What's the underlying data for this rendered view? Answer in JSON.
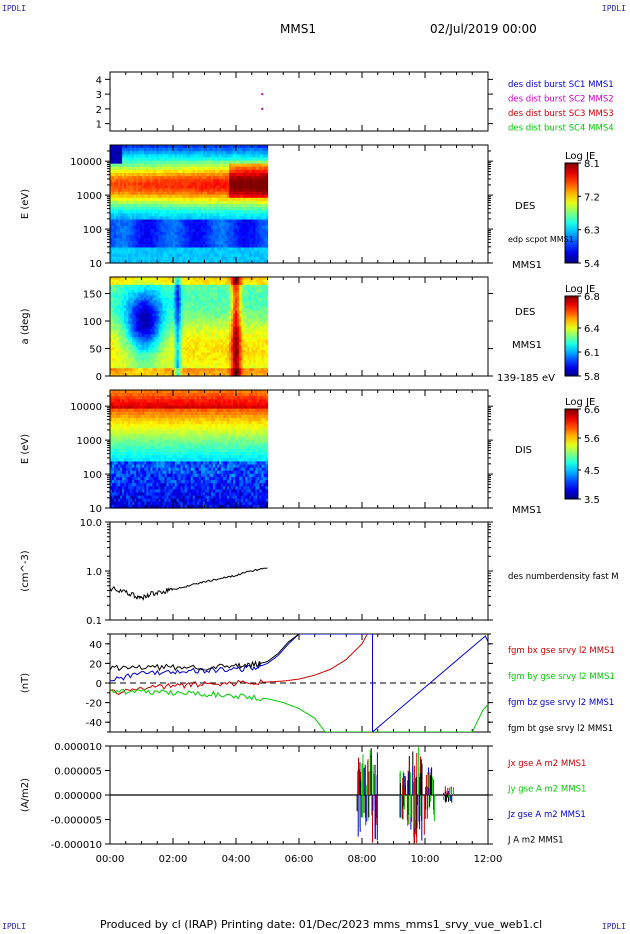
{
  "header": {
    "corner_tl": "IPDLI",
    "corner_tr": "IPDLI",
    "corner_bl": "IPDLI",
    "corner_br": "IPDLI",
    "title": "MMS1",
    "date": "02/Jul/2019 00:00"
  },
  "footer": {
    "text": "Produced by cl (IRAP)   Printing date: 01/Dec/2023   mms_mms1_srvy_vue_web1.cl"
  },
  "colors": {
    "blue": "#0000cc",
    "magenta": "#cc00cc",
    "red": "#cc0000",
    "green": "#00cc00",
    "black": "#000000"
  },
  "chart_data": [
    {
      "type": "scatter",
      "ylim": [
        0.5,
        4.5
      ],
      "yticks": [
        "1",
        "2",
        "3",
        "4"
      ],
      "legend": [
        {
          "label": "des dist burst SC1 MMS1",
          "color": "#0000cc"
        },
        {
          "label": "des dist burst SC2 MMS2",
          "color": "#cc00cc"
        },
        {
          "label": "des dist burst SC3 MMS3",
          "color": "#cc0000"
        },
        {
          "label": "des dist burst SC4 MMS4",
          "color": "#00cc00"
        }
      ],
      "points": [
        {
          "x": "04:50",
          "y": 3
        },
        {
          "x": "04:50",
          "y": 2
        }
      ]
    },
    {
      "type": "heatmap",
      "ylabel": "E (eV)",
      "yscale": "log",
      "ylim": [
        10,
        30000
      ],
      "yticks": [
        "10",
        "100",
        "1000",
        "10000"
      ],
      "xrange": [
        "00:00",
        "05:00"
      ],
      "right_labels": [
        "DES",
        "edp scpot MMS1",
        "MMS1"
      ],
      "colorbar": {
        "title": "Log JE",
        "ticks": [
          "8.1",
          "7.2",
          "6.3",
          "5.4"
        ],
        "range": [
          5.4,
          8.1
        ]
      }
    },
    {
      "type": "heatmap",
      "ylabel": "a (deg)",
      "ylim": [
        0,
        180
      ],
      "yticks": [
        "0",
        "50",
        "100",
        "150"
      ],
      "xrange": [
        "00:00",
        "05:00"
      ],
      "right_labels": [
        "DES",
        "MMS1",
        "139-185 eV"
      ],
      "colorbar": {
        "title": "Log JE",
        "ticks": [
          "6.8",
          "6.4",
          "6.1",
          "5.8"
        ],
        "range": [
          5.8,
          6.8
        ]
      }
    },
    {
      "type": "heatmap",
      "ylabel": "E (eV)",
      "yscale": "log",
      "ylim": [
        10,
        30000
      ],
      "yticks": [
        "10",
        "100",
        "1000",
        "10000"
      ],
      "xrange": [
        "00:00",
        "05:00"
      ],
      "right_labels": [
        "DIS",
        "MMS1"
      ],
      "colorbar": {
        "title": "Log JE",
        "ticks": [
          "6.6",
          "5.6",
          "4.5",
          "3.5"
        ],
        "range": [
          3.5,
          6.6
        ]
      }
    },
    {
      "type": "line",
      "ylabel": "(cm^-3)",
      "yscale": "log",
      "ylim": [
        0.1,
        10
      ],
      "yticks": [
        "0.1",
        "1.0",
        "10.0"
      ],
      "legend": [
        {
          "label": "des numberdensity fast M",
          "color": "#000000"
        }
      ],
      "series": [
        {
          "name": "des numberdensity fast M",
          "color": "#000000",
          "x": [
            "00:00",
            "00:30",
            "00:50",
            "01:00",
            "01:20",
            "01:40",
            "02:00",
            "02:30",
            "03:00",
            "03:30",
            "04:00",
            "04:30",
            "05:00"
          ],
          "values": [
            0.45,
            0.36,
            0.31,
            0.28,
            0.35,
            0.38,
            0.42,
            0.5,
            0.6,
            0.7,
            0.82,
            1.0,
            1.15
          ]
        }
      ]
    },
    {
      "type": "line",
      "ylabel": "(nT)",
      "ylim": [
        -50,
        50
      ],
      "yticks": [
        "-40",
        "-20",
        "0",
        "20",
        "40"
      ],
      "legend": [
        {
          "label": "fgm bx gse srvy l2 MMS1",
          "color": "#cc0000"
        },
        {
          "label": "fgm by gse srvy l2 MMS1",
          "color": "#00cc00"
        },
        {
          "label": "fgm bz gse srvy l2 MMS1",
          "color": "#0000cc"
        },
        {
          "label": "fgm bt gse srvy l2 MMS1",
          "color": "#000000"
        }
      ],
      "series": [
        {
          "name": "fgm bx gse srvy l2 MMS1",
          "color": "#cc0000",
          "x": [
            "00:00",
            "01:00",
            "02:00",
            "03:00",
            "04:00",
            "05:00",
            "05:30",
            "06:00",
            "06:30",
            "07:00",
            "07:30",
            "08:00",
            "08:10"
          ],
          "values": [
            -10,
            -6,
            -3,
            -1,
            0,
            1,
            2,
            4,
            8,
            14,
            24,
            40,
            50
          ]
        },
        {
          "name": "fgm by gse srvy l2 MMS1",
          "color": "#00cc00",
          "x": [
            "00:00",
            "01:00",
            "02:00",
            "03:00",
            "04:00",
            "05:00",
            "05:30",
            "06:00",
            "06:30",
            "06:50",
            "11:30",
            "11:50",
            "12:00"
          ],
          "values": [
            -8,
            -9,
            -10,
            -11,
            -13,
            -16,
            -20,
            -26,
            -36,
            -50,
            -50,
            -28,
            -22
          ]
        },
        {
          "name": "fgm bz gse srvy l2 MMS1",
          "color": "#0000cc",
          "x": [
            "00:00",
            "01:00",
            "02:00",
            "03:00",
            "04:00",
            "04:40",
            "05:00",
            "05:20",
            "05:40",
            "06:00",
            "08:20",
            "08:20",
            "11:55",
            "12:00"
          ],
          "values": [
            3,
            10,
            12,
            13,
            14,
            16,
            20,
            28,
            40,
            50,
            50,
            -50,
            48,
            42
          ]
        },
        {
          "name": "fgm bt gse srvy l2 MMS1",
          "color": "#000000",
          "x": [
            "00:00",
            "01:00",
            "02:00",
            "03:00",
            "04:00",
            "04:40",
            "05:00",
            "05:20",
            "05:40",
            "06:00"
          ],
          "values": [
            15,
            16,
            16,
            16,
            17,
            19,
            22,
            30,
            42,
            50
          ]
        }
      ]
    },
    {
      "type": "line",
      "ylabel": "(A/m2)",
      "ylim": [
        -1e-05,
        1e-05
      ],
      "yticks": [
        "-0.000010",
        "-0.000005",
        "0.000000",
        "0.000005",
        "0.000010"
      ],
      "xlabel_ticks": [
        "00:00",
        "02:00",
        "04:00",
        "06:00",
        "08:00",
        "10:00",
        "12:00"
      ],
      "legend": [
        {
          "label": "Jx gse A m2 MMS1",
          "color": "#cc0000"
        },
        {
          "label": "Jy gse A m2 MMS1",
          "color": "#00cc00"
        },
        {
          "label": "Jz gse A m2 MMS1",
          "color": "#0000cc"
        },
        {
          "label": "J A m2 MMS1",
          "color": "#000000"
        }
      ],
      "bursts": [
        {
          "x": "08:00",
          "amp": 9e-06
        },
        {
          "x": "08:20",
          "amp": 1e-05
        },
        {
          "x": "09:20",
          "amp": 5e-06
        },
        {
          "x": "09:35",
          "amp": 1e-05
        },
        {
          "x": "09:50",
          "amp": 1e-05
        },
        {
          "x": "10:10",
          "amp": 6e-06
        },
        {
          "x": "10:45",
          "amp": 2e-06
        }
      ]
    }
  ]
}
